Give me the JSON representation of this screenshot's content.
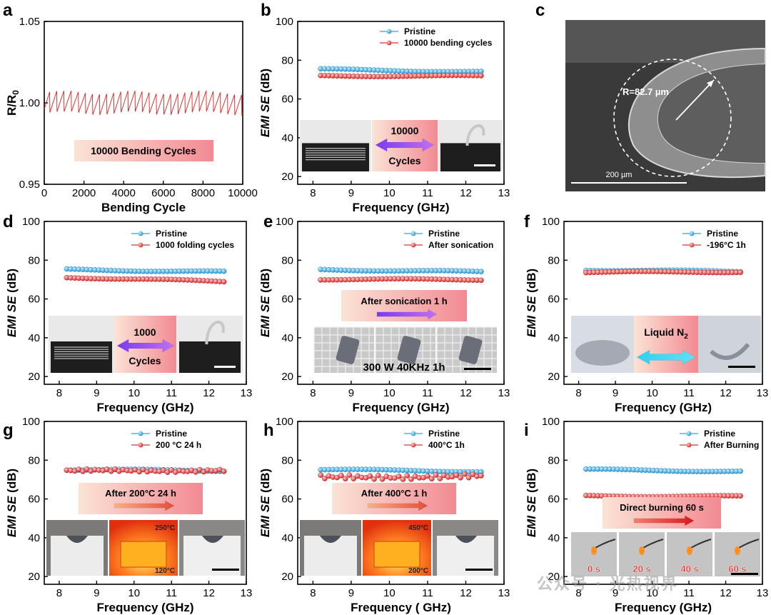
{
  "figure": {
    "panels": [
      {
        "letter": "a"
      },
      {
        "letter": "b"
      },
      {
        "letter": "c"
      },
      {
        "letter": "d"
      },
      {
        "letter": "e"
      },
      {
        "letter": "f"
      },
      {
        "letter": "g"
      },
      {
        "letter": "h"
      },
      {
        "letter": "i"
      }
    ],
    "sem": {
      "radius_label": "R=82.7 µm",
      "scale_label": "200 µm"
    },
    "watermark": "公众号 · 光热视界"
  },
  "chart_data": [
    {
      "id": "a",
      "type": "line",
      "title": "",
      "xlabel": "Bending Cycle",
      "ylabel": "R/R",
      "ylabel_sub": "0",
      "xlim": [
        0,
        10000
      ],
      "ylim": [
        0.95,
        1.05
      ],
      "xticks": [
        "0",
        "2000",
        "4000",
        "6000",
        "8000",
        "10000"
      ],
      "yticks": [
        "0.95",
        "1.00",
        "1.05"
      ],
      "series": [
        {
          "name": "R/R0",
          "mean": 1.0,
          "band": 0.006
        }
      ],
      "annotation": "10000 Bending Cycles",
      "colors": {
        "line": "#e81c1c"
      }
    },
    {
      "id": "b",
      "type": "line",
      "xlabel": "Frequency (GHz)",
      "ylabel": "EMI SE (dB)",
      "xlim": [
        7.6,
        13
      ],
      "ylim": [
        16,
        100
      ],
      "xticks": [
        "8",
        "9",
        "10",
        "11",
        "12",
        "13"
      ],
      "yticks": [
        "20",
        "40",
        "60",
        "80",
        "100"
      ],
      "series": [
        {
          "name": "Pristine",
          "x_start": 8.2,
          "x_end": 12.4,
          "y_start": 75.3,
          "y_end": 74.0,
          "color": "#2aa4dc"
        },
        {
          "name": "10000 bending cycles",
          "x_start": 8.2,
          "x_end": 12.4,
          "y_start": 72.0,
          "y_end": 71.8,
          "color": "#e03030"
        }
      ],
      "inset": {
        "label_top": "10000",
        "label_bottom": "Cycles",
        "type": "photo-bend"
      }
    },
    {
      "id": "d",
      "type": "line",
      "xlabel": "Frequency (GHz)",
      "ylabel": "EMI SE (dB)",
      "xlim": [
        7.6,
        13
      ],
      "ylim": [
        16,
        100
      ],
      "xticks": [
        "8",
        "9",
        "10",
        "11",
        "12",
        "13"
      ],
      "yticks": [
        "20",
        "40",
        "60",
        "80",
        "100"
      ],
      "series": [
        {
          "name": "Pristine",
          "x_start": 8.2,
          "x_end": 12.4,
          "y_start": 75.2,
          "y_end": 74.0,
          "color": "#2aa4dc"
        },
        {
          "name": "1000 folding cycles",
          "x_start": 8.2,
          "x_end": 12.4,
          "y_start": 71.2,
          "y_end": 69.0,
          "color": "#e03030"
        }
      ],
      "inset": {
        "label_top": "1000",
        "label_bottom": "Cycles",
        "type": "photo-bend"
      }
    },
    {
      "id": "e",
      "type": "line",
      "xlabel": "Frequency (GHz)",
      "ylabel": "EMI SE (dB)",
      "xlim": [
        7.6,
        13
      ],
      "ylim": [
        16,
        100
      ],
      "xticks": [
        "8",
        "9",
        "10",
        "11",
        "12",
        "13"
      ],
      "yticks": [
        "20",
        "40",
        "60",
        "80",
        "100"
      ],
      "series": [
        {
          "name": "Pristine",
          "x_start": 8.2,
          "x_end": 12.4,
          "y_start": 75.2,
          "y_end": 74.0,
          "color": "#2aa4dc"
        },
        {
          "name": "After sonication",
          "x_start": 8.2,
          "x_end": 12.4,
          "y_start": 70.2,
          "y_end": 70.0,
          "color": "#e03030"
        }
      ],
      "inset": {
        "label_top": "After sonication 1 h",
        "label_bottom": "300 W 40KHz 1h",
        "type": "photo-sonic"
      }
    },
    {
      "id": "f",
      "type": "line",
      "xlabel": "Frequency (GHz)",
      "ylabel": "EMI SE (dB)",
      "xlim": [
        7.6,
        13
      ],
      "ylim": [
        16,
        100
      ],
      "xticks": [
        "8",
        "9",
        "10",
        "11",
        "12",
        "13"
      ],
      "yticks": [
        "20",
        "40",
        "60",
        "80",
        "100"
      ],
      "series": [
        {
          "name": "Pristine",
          "x_start": 8.2,
          "x_end": 12.4,
          "y_start": 75.0,
          "y_end": 74.2,
          "color": "#2aa4dc"
        },
        {
          "name": "-196°C 1h",
          "x_start": 8.2,
          "x_end": 12.4,
          "y_start": 73.8,
          "y_end": 74.0,
          "color": "#e03030"
        }
      ],
      "inset": {
        "label_top": "Liquid N",
        "label_top_sub": "2",
        "label_bottom": "",
        "type": "photo-ln2"
      }
    },
    {
      "id": "g",
      "type": "line",
      "xlabel": "Frequency (GHz)",
      "ylabel": "EMI SE (dB)",
      "xlim": [
        7.6,
        13
      ],
      "ylim": [
        16,
        100
      ],
      "xticks": [
        "8",
        "9",
        "10",
        "11",
        "12",
        "13"
      ],
      "yticks": [
        "20",
        "40",
        "60",
        "80",
        "100"
      ],
      "series": [
        {
          "name": "Pristine",
          "x_start": 8.2,
          "x_end": 12.4,
          "y_start": 75.2,
          "y_end": 74.6,
          "color": "#2aa4dc"
        },
        {
          "name": "200 °C 24 h",
          "x_start": 8.2,
          "x_end": 12.4,
          "y_start": 74.5,
          "y_end": 74.8,
          "color": "#e03030"
        }
      ],
      "inset": {
        "label_top": "After 200°C  24 h",
        "temp_high": "250°C",
        "temp_low": "120°C",
        "type": "photo-heat"
      }
    },
    {
      "id": "h",
      "type": "line",
      "xlabel": "Frequency ( GHz)",
      "ylabel": "EMI SE (dB)",
      "xlim": [
        7.6,
        13
      ],
      "ylim": [
        16,
        100
      ],
      "xticks": [
        "8",
        "9",
        "10",
        "11",
        "12",
        "13"
      ],
      "yticks": [
        "20",
        "40",
        "60",
        "80",
        "100"
      ],
      "series": [
        {
          "name": "Pristine",
          "x_start": 8.2,
          "x_end": 12.4,
          "y_start": 75.2,
          "y_end": 74.2,
          "color": "#2aa4dc"
        },
        {
          "name": "400°C 1h",
          "x_start": 8.2,
          "x_end": 12.4,
          "y_start": 71.0,
          "y_end": 71.8,
          "color": "#e03030"
        }
      ],
      "inset": {
        "label_top": "After 400°C  1 h",
        "temp_high": "450°C",
        "temp_low": "200°C",
        "type": "photo-heat"
      }
    },
    {
      "id": "i",
      "type": "line",
      "xlabel": "Frequency (GHz)",
      "ylabel": "EMI SE (dB)",
      "xlim": [
        7.6,
        13
      ],
      "ylim": [
        16,
        100
      ],
      "xticks": [
        "8",
        "9",
        "10",
        "11",
        "12",
        "13"
      ],
      "yticks": [
        "20",
        "40",
        "60",
        "80",
        "100"
      ],
      "series": [
        {
          "name": "Pristine",
          "x_start": 8.2,
          "x_end": 12.4,
          "y_start": 75.2,
          "y_end": 74.2,
          "color": "#2aa4dc"
        },
        {
          "name": "After Burning",
          "x_start": 8.2,
          "x_end": 12.4,
          "y_start": 61.6,
          "y_end": 61.3,
          "color": "#e03030"
        }
      ],
      "inset": {
        "label_top": "Direct burning 60 s",
        "frames": [
          "0 s",
          "20 s",
          "40 s",
          "60 s"
        ],
        "type": "photo-burn"
      }
    }
  ]
}
